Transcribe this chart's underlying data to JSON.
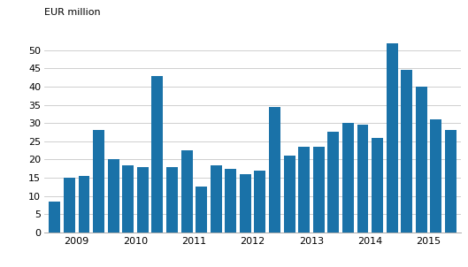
{
  "values": [
    8.5,
    15.0,
    15.5,
    28.0,
    20.0,
    18.5,
    18.0,
    43.0,
    18.0,
    22.5,
    12.5,
    18.5,
    17.5,
    16.0,
    17.0,
    34.5,
    21.0,
    23.5,
    23.5,
    27.5,
    30.0,
    29.5,
    26.0,
    52.0,
    44.5,
    40.0,
    31.0,
    28.0
  ],
  "year_labels": [
    "2009",
    "2010",
    "2011",
    "2012",
    "2013",
    "2014",
    "2015"
  ],
  "year_positions": [
    1.5,
    5.5,
    9.5,
    13.5,
    17.5,
    21.5,
    25.5
  ],
  "bar_color": "#1a72a8",
  "ylabel": "EUR million",
  "ylim": [
    0,
    55
  ],
  "yticks": [
    0,
    5,
    10,
    15,
    20,
    25,
    30,
    35,
    40,
    45,
    50
  ],
  "background_color": "#ffffff",
  "grid_color": "#c8c8c8"
}
